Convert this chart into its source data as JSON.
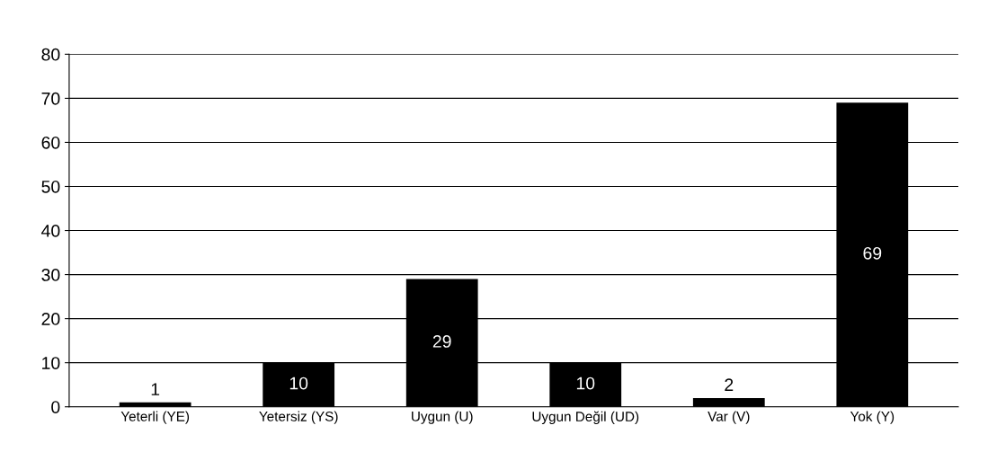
{
  "chart_data": {
    "type": "bar",
    "categories": [
      "Yeterli (YE)",
      "Yetersiz (YS)",
      "Uygun (U)",
      "Uygun Değil (UD)",
      "Var (V)",
      "Yok (Y)"
    ],
    "values": [
      1,
      10,
      29,
      10,
      2,
      69
    ],
    "color": "#000000",
    "ylim": [
      0,
      80
    ],
    "yticks": [
      0,
      10,
      20,
      30,
      40,
      50,
      60,
      70,
      80
    ],
    "grid": "y",
    "data_labels": true
  }
}
